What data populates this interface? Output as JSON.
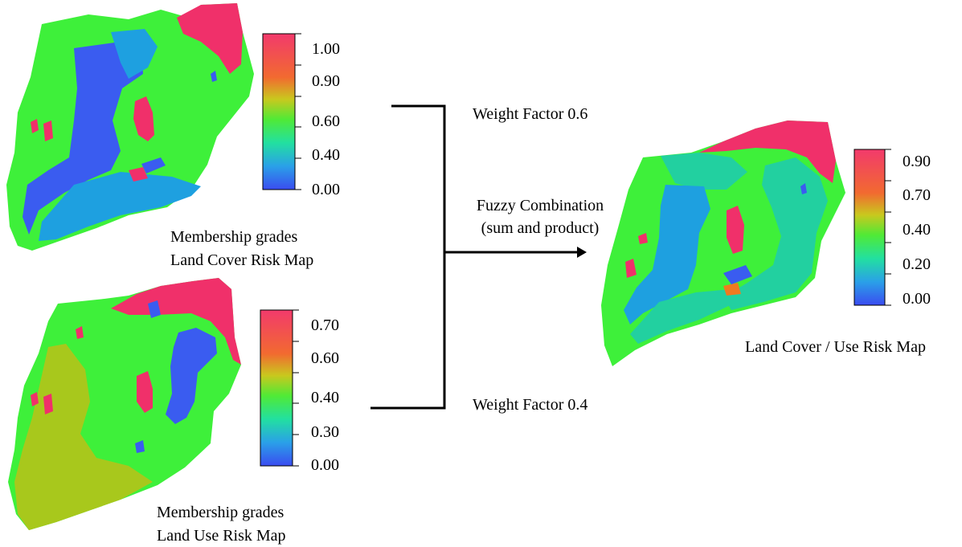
{
  "maps": {
    "land_cover": {
      "caption_line1": "Membership grades",
      "caption_line2": "Land Cover Risk Map",
      "scale_ticks": [
        "1.00",
        "0.90",
        "0.60",
        "0.40",
        "0.00"
      ]
    },
    "land_use": {
      "caption_line1": "Membership grades",
      "caption_line2": "Land Use Risk Map",
      "scale_ticks": [
        "0.70",
        "0.60",
        "0.40",
        "0.30",
        "0.00"
      ]
    },
    "combined": {
      "caption": "Land Cover / Use Risk Map",
      "scale_ticks": [
        "0.90",
        "0.70",
        "0.40",
        "0.20",
        "0.00"
      ]
    }
  },
  "process": {
    "weight_top": "Weight Factor 0.6",
    "weight_bottom": "Weight Factor 0.4",
    "combination_line1": "Fuzzy Combination",
    "combination_line2": "(sum and product)"
  },
  "colors": {
    "high_risk": "#f0306a",
    "mid_risk": "#f07a20",
    "moderate": "#3ef03a",
    "low_risk": "#1ea0e0",
    "very_low": "#3a5cf0",
    "olive_zone": "#a8c81c",
    "teal_zone": "#22d0a0"
  }
}
